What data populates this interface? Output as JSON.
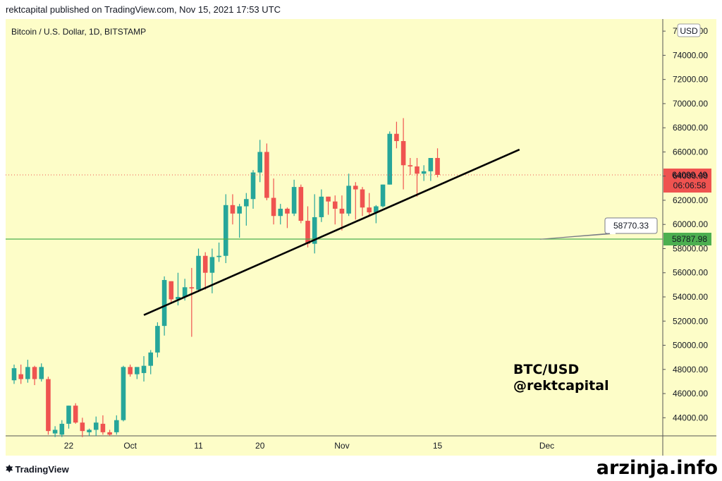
{
  "header": {
    "text": "rektcapital published on TradingView.com, Nov 15, 2021 17:53 UTC"
  },
  "footer": {
    "brand": "TradingView",
    "watermark": "arzinja.info"
  },
  "colors": {
    "background": "#fdfdc8",
    "up": "#26a69a",
    "down": "#ef5350",
    "support_line": "#4caf50",
    "trendline": "#000000"
  },
  "chart_data": {
    "type": "candlestick",
    "title": "Bitcoin / U.S. Dollar, 1D, BITSTAMP",
    "currency_badge": "USD",
    "ylim": [
      42500,
      77000
    ],
    "y_ticks": [
      44000,
      46000,
      48000,
      50000,
      52000,
      54000,
      56000,
      58000,
      60000,
      62000,
      64000,
      66000,
      68000,
      70000,
      72000,
      74000,
      76000
    ],
    "y_tick_labels": [
      "44000.00",
      "46000.00",
      "48000.00",
      "50000.00",
      "52000.00",
      "54000.00",
      "56000.00",
      "58000.00",
      "60000.00",
      "62000.00",
      "64000.00",
      "66000.00",
      "68000.00",
      "70000.00",
      "72000.00",
      "74000.00",
      "76000.00"
    ],
    "x_tick_labels": [
      {
        "label": "22",
        "date": "2021-09-22"
      },
      {
        "label": "Oct",
        "date": "2021-10-01"
      },
      {
        "label": "11",
        "date": "2021-10-11"
      },
      {
        "label": "20",
        "date": "2021-10-20"
      },
      {
        "label": "Nov",
        "date": "2021-11-01"
      },
      {
        "label": "15",
        "date": "2021-11-15"
      },
      {
        "label": "Dec",
        "date": "2021-12-01"
      }
    ],
    "x_range": [
      "2021-09-14",
      "2021-12-09"
    ],
    "candles": [
      {
        "date": "2021-09-14",
        "o": 47100,
        "h": 48400,
        "l": 46800,
        "c": 48100
      },
      {
        "date": "2021-09-15",
        "o": 47600,
        "h": 48400,
        "l": 46800,
        "c": 47200
      },
      {
        "date": "2021-09-16",
        "o": 47200,
        "h": 48800,
        "l": 46900,
        "c": 48200
      },
      {
        "date": "2021-09-17",
        "o": 48200,
        "h": 48300,
        "l": 46700,
        "c": 47200
      },
      {
        "date": "2021-09-18",
        "o": 47200,
        "h": 48500,
        "l": 47000,
        "c": 48200
      },
      {
        "date": "2021-09-19",
        "o": 47200,
        "h": 47400,
        "l": 42600,
        "c": 42900
      },
      {
        "date": "2021-09-20",
        "o": 42700,
        "h": 43300,
        "l": 42400,
        "c": 43000
      },
      {
        "date": "2021-09-21",
        "o": 42600,
        "h": 43800,
        "l": 42400,
        "c": 43500
      },
      {
        "date": "2021-09-22",
        "o": 43500,
        "h": 45000,
        "l": 43100,
        "c": 45000
      },
      {
        "date": "2021-09-23",
        "o": 45000,
        "h": 45200,
        "l": 43500,
        "c": 43600
      },
      {
        "date": "2021-09-24",
        "o": 43600,
        "h": 44000,
        "l": 42400,
        "c": 42900
      },
      {
        "date": "2021-09-25",
        "o": 42800,
        "h": 43100,
        "l": 42500,
        "c": 43000
      },
      {
        "date": "2021-09-26",
        "o": 43000,
        "h": 44100,
        "l": 42500,
        "c": 43600
      },
      {
        "date": "2021-09-27",
        "o": 43500,
        "h": 44200,
        "l": 42600,
        "c": 42800
      },
      {
        "date": "2021-09-28",
        "o": 42800,
        "h": 43000,
        "l": 42500,
        "c": 42600
      },
      {
        "date": "2021-09-29",
        "o": 42800,
        "h": 44200,
        "l": 42600,
        "c": 43800
      },
      {
        "date": "2021-09-30",
        "o": 43800,
        "h": 48300,
        "l": 43700,
        "c": 48200
      },
      {
        "date": "2021-10-01",
        "o": 48200,
        "h": 48400,
        "l": 47400,
        "c": 47600
      },
      {
        "date": "2021-10-02",
        "o": 47600,
        "h": 48100,
        "l": 47200,
        "c": 48200
      },
      {
        "date": "2021-10-03",
        "o": 47700,
        "h": 49100,
        "l": 47000,
        "c": 48300
      },
      {
        "date": "2021-10-04",
        "o": 48300,
        "h": 49600,
        "l": 47600,
        "c": 49400
      },
      {
        "date": "2021-10-05",
        "o": 49400,
        "h": 51900,
        "l": 49000,
        "c": 51600
      },
      {
        "date": "2021-10-06",
        "o": 51600,
        "h": 55700,
        "l": 50800,
        "c": 55400
      },
      {
        "date": "2021-10-07",
        "o": 55300,
        "h": 55300,
        "l": 53500,
        "c": 53800
      },
      {
        "date": "2021-10-08",
        "o": 53800,
        "h": 56000,
        "l": 53300,
        "c": 54000
      },
      {
        "date": "2021-10-09",
        "o": 54000,
        "h": 55500,
        "l": 53700,
        "c": 54800
      },
      {
        "date": "2021-10-10",
        "o": 54800,
        "h": 56400,
        "l": 50700,
        "c": 54700
      },
      {
        "date": "2021-10-11",
        "o": 54600,
        "h": 58000,
        "l": 54400,
        "c": 57400
      },
      {
        "date": "2021-10-12",
        "o": 57400,
        "h": 57700,
        "l": 54600,
        "c": 56000
      },
      {
        "date": "2021-10-13",
        "o": 56000,
        "h": 58000,
        "l": 54300,
        "c": 57300
      },
      {
        "date": "2021-10-14",
        "o": 57300,
        "h": 58500,
        "l": 56900,
        "c": 57400
      },
      {
        "date": "2021-10-15",
        "o": 57400,
        "h": 62500,
        "l": 56800,
        "c": 61600
      },
      {
        "date": "2021-10-16",
        "o": 61600,
        "h": 62500,
        "l": 60000,
        "c": 60900
      },
      {
        "date": "2021-10-17",
        "o": 60900,
        "h": 61700,
        "l": 58900,
        "c": 61500
      },
      {
        "date": "2021-10-18",
        "o": 61500,
        "h": 62600,
        "l": 59900,
        "c": 62100
      },
      {
        "date": "2021-10-19",
        "o": 62100,
        "h": 64500,
        "l": 61300,
        "c": 64300
      },
      {
        "date": "2021-10-20",
        "o": 64300,
        "h": 67000,
        "l": 63500,
        "c": 66000
      },
      {
        "date": "2021-10-21",
        "o": 66000,
        "h": 66700,
        "l": 62000,
        "c": 62200
      },
      {
        "date": "2021-10-22",
        "o": 62200,
        "h": 63800,
        "l": 60000,
        "c": 60700
      },
      {
        "date": "2021-10-23",
        "o": 60700,
        "h": 61700,
        "l": 60000,
        "c": 61300
      },
      {
        "date": "2021-10-24",
        "o": 61300,
        "h": 61400,
        "l": 59700,
        "c": 60900
      },
      {
        "date": "2021-10-25",
        "o": 60900,
        "h": 63700,
        "l": 60700,
        "c": 63100
      },
      {
        "date": "2021-10-26",
        "o": 63100,
        "h": 63300,
        "l": 60100,
        "c": 60300
      },
      {
        "date": "2021-10-27",
        "o": 60300,
        "h": 61500,
        "l": 58100,
        "c": 58400
      },
      {
        "date": "2021-10-28",
        "o": 58400,
        "h": 62500,
        "l": 57600,
        "c": 60600
      },
      {
        "date": "2021-10-29",
        "o": 60600,
        "h": 62900,
        "l": 60200,
        "c": 62300
      },
      {
        "date": "2021-10-30",
        "o": 62300,
        "h": 62300,
        "l": 60800,
        "c": 61900
      },
      {
        "date": "2021-10-31",
        "o": 61900,
        "h": 62400,
        "l": 60000,
        "c": 61300
      },
      {
        "date": "2021-11-01",
        "o": 61300,
        "h": 62400,
        "l": 59500,
        "c": 60900
      },
      {
        "date": "2021-11-02",
        "o": 60900,
        "h": 64200,
        "l": 60700,
        "c": 63200
      },
      {
        "date": "2021-11-03",
        "o": 63200,
        "h": 63500,
        "l": 60400,
        "c": 62900
      },
      {
        "date": "2021-11-04",
        "o": 62900,
        "h": 63100,
        "l": 60700,
        "c": 61400
      },
      {
        "date": "2021-11-05",
        "o": 61400,
        "h": 62600,
        "l": 60800,
        "c": 61000
      },
      {
        "date": "2021-11-06",
        "o": 61000,
        "h": 61600,
        "l": 60100,
        "c": 61500
      },
      {
        "date": "2021-11-07",
        "o": 61500,
        "h": 63300,
        "l": 61400,
        "c": 63300
      },
      {
        "date": "2021-11-08",
        "o": 63300,
        "h": 67700,
        "l": 63300,
        "c": 67500
      },
      {
        "date": "2021-11-09",
        "o": 67500,
        "h": 68500,
        "l": 66300,
        "c": 66900
      },
      {
        "date": "2021-11-10",
        "o": 66900,
        "h": 68800,
        "l": 62900,
        "c": 64900
      },
      {
        "date": "2021-11-11",
        "o": 64900,
        "h": 65500,
        "l": 64100,
        "c": 64800
      },
      {
        "date": "2021-11-12",
        "o": 64800,
        "h": 65500,
        "l": 62300,
        "c": 64200
      },
      {
        "date": "2021-11-13",
        "o": 64200,
        "h": 64900,
        "l": 63600,
        "c": 64400
      },
      {
        "date": "2021-11-14",
        "o": 64400,
        "h": 65500,
        "l": 63600,
        "c": 65500
      },
      {
        "date": "2021-11-15",
        "o": 65500,
        "h": 66300,
        "l": 63900,
        "c": 64099
      }
    ],
    "trendline": [
      {
        "date": "2021-10-03",
        "price": 52500
      },
      {
        "date": "2021-11-27",
        "price": 66200
      }
    ],
    "horizontal_lines": [
      {
        "price": 58787.98,
        "label": "58787.98",
        "color": "#4caf50"
      },
      {
        "price": 64099.49,
        "label": "64099.49",
        "countdown": "06:06:58",
        "color": "#ef5350",
        "style": "dotted"
      }
    ],
    "callout": {
      "date": "2021-11-30",
      "price": 58770.33,
      "label": "58770.33"
    },
    "annotations": [
      "BTC/USD",
      "@rektcapital"
    ]
  }
}
